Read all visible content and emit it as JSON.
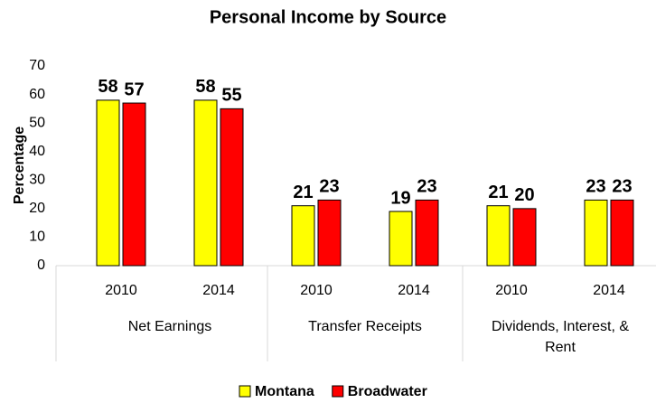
{
  "chart_data": {
    "type": "bar",
    "title": "Personal Income by Source",
    "y_label": "Percentage",
    "groups": [
      {
        "name": "Net Earnings",
        "categories": [
          "2010",
          "2014"
        ]
      },
      {
        "name": "Transfer Receipts",
        "categories": [
          "2010",
          "2014"
        ]
      },
      {
        "name": "Dividends, Interest, & Rent",
        "categories": [
          "2010",
          "2014"
        ]
      }
    ],
    "series": [
      {
        "name": "Montana",
        "color": "#ffff00",
        "values": [
          58,
          58,
          21,
          19,
          21,
          23
        ]
      },
      {
        "name": "Broadwater",
        "color": "#ff0000",
        "values": [
          57,
          55,
          23,
          23,
          20,
          23
        ]
      }
    ],
    "ylim": [
      0,
      70
    ],
    "yticks": [
      0,
      10,
      20,
      30,
      40,
      50,
      60,
      70
    ],
    "grid": false,
    "legend": "bottom"
  }
}
